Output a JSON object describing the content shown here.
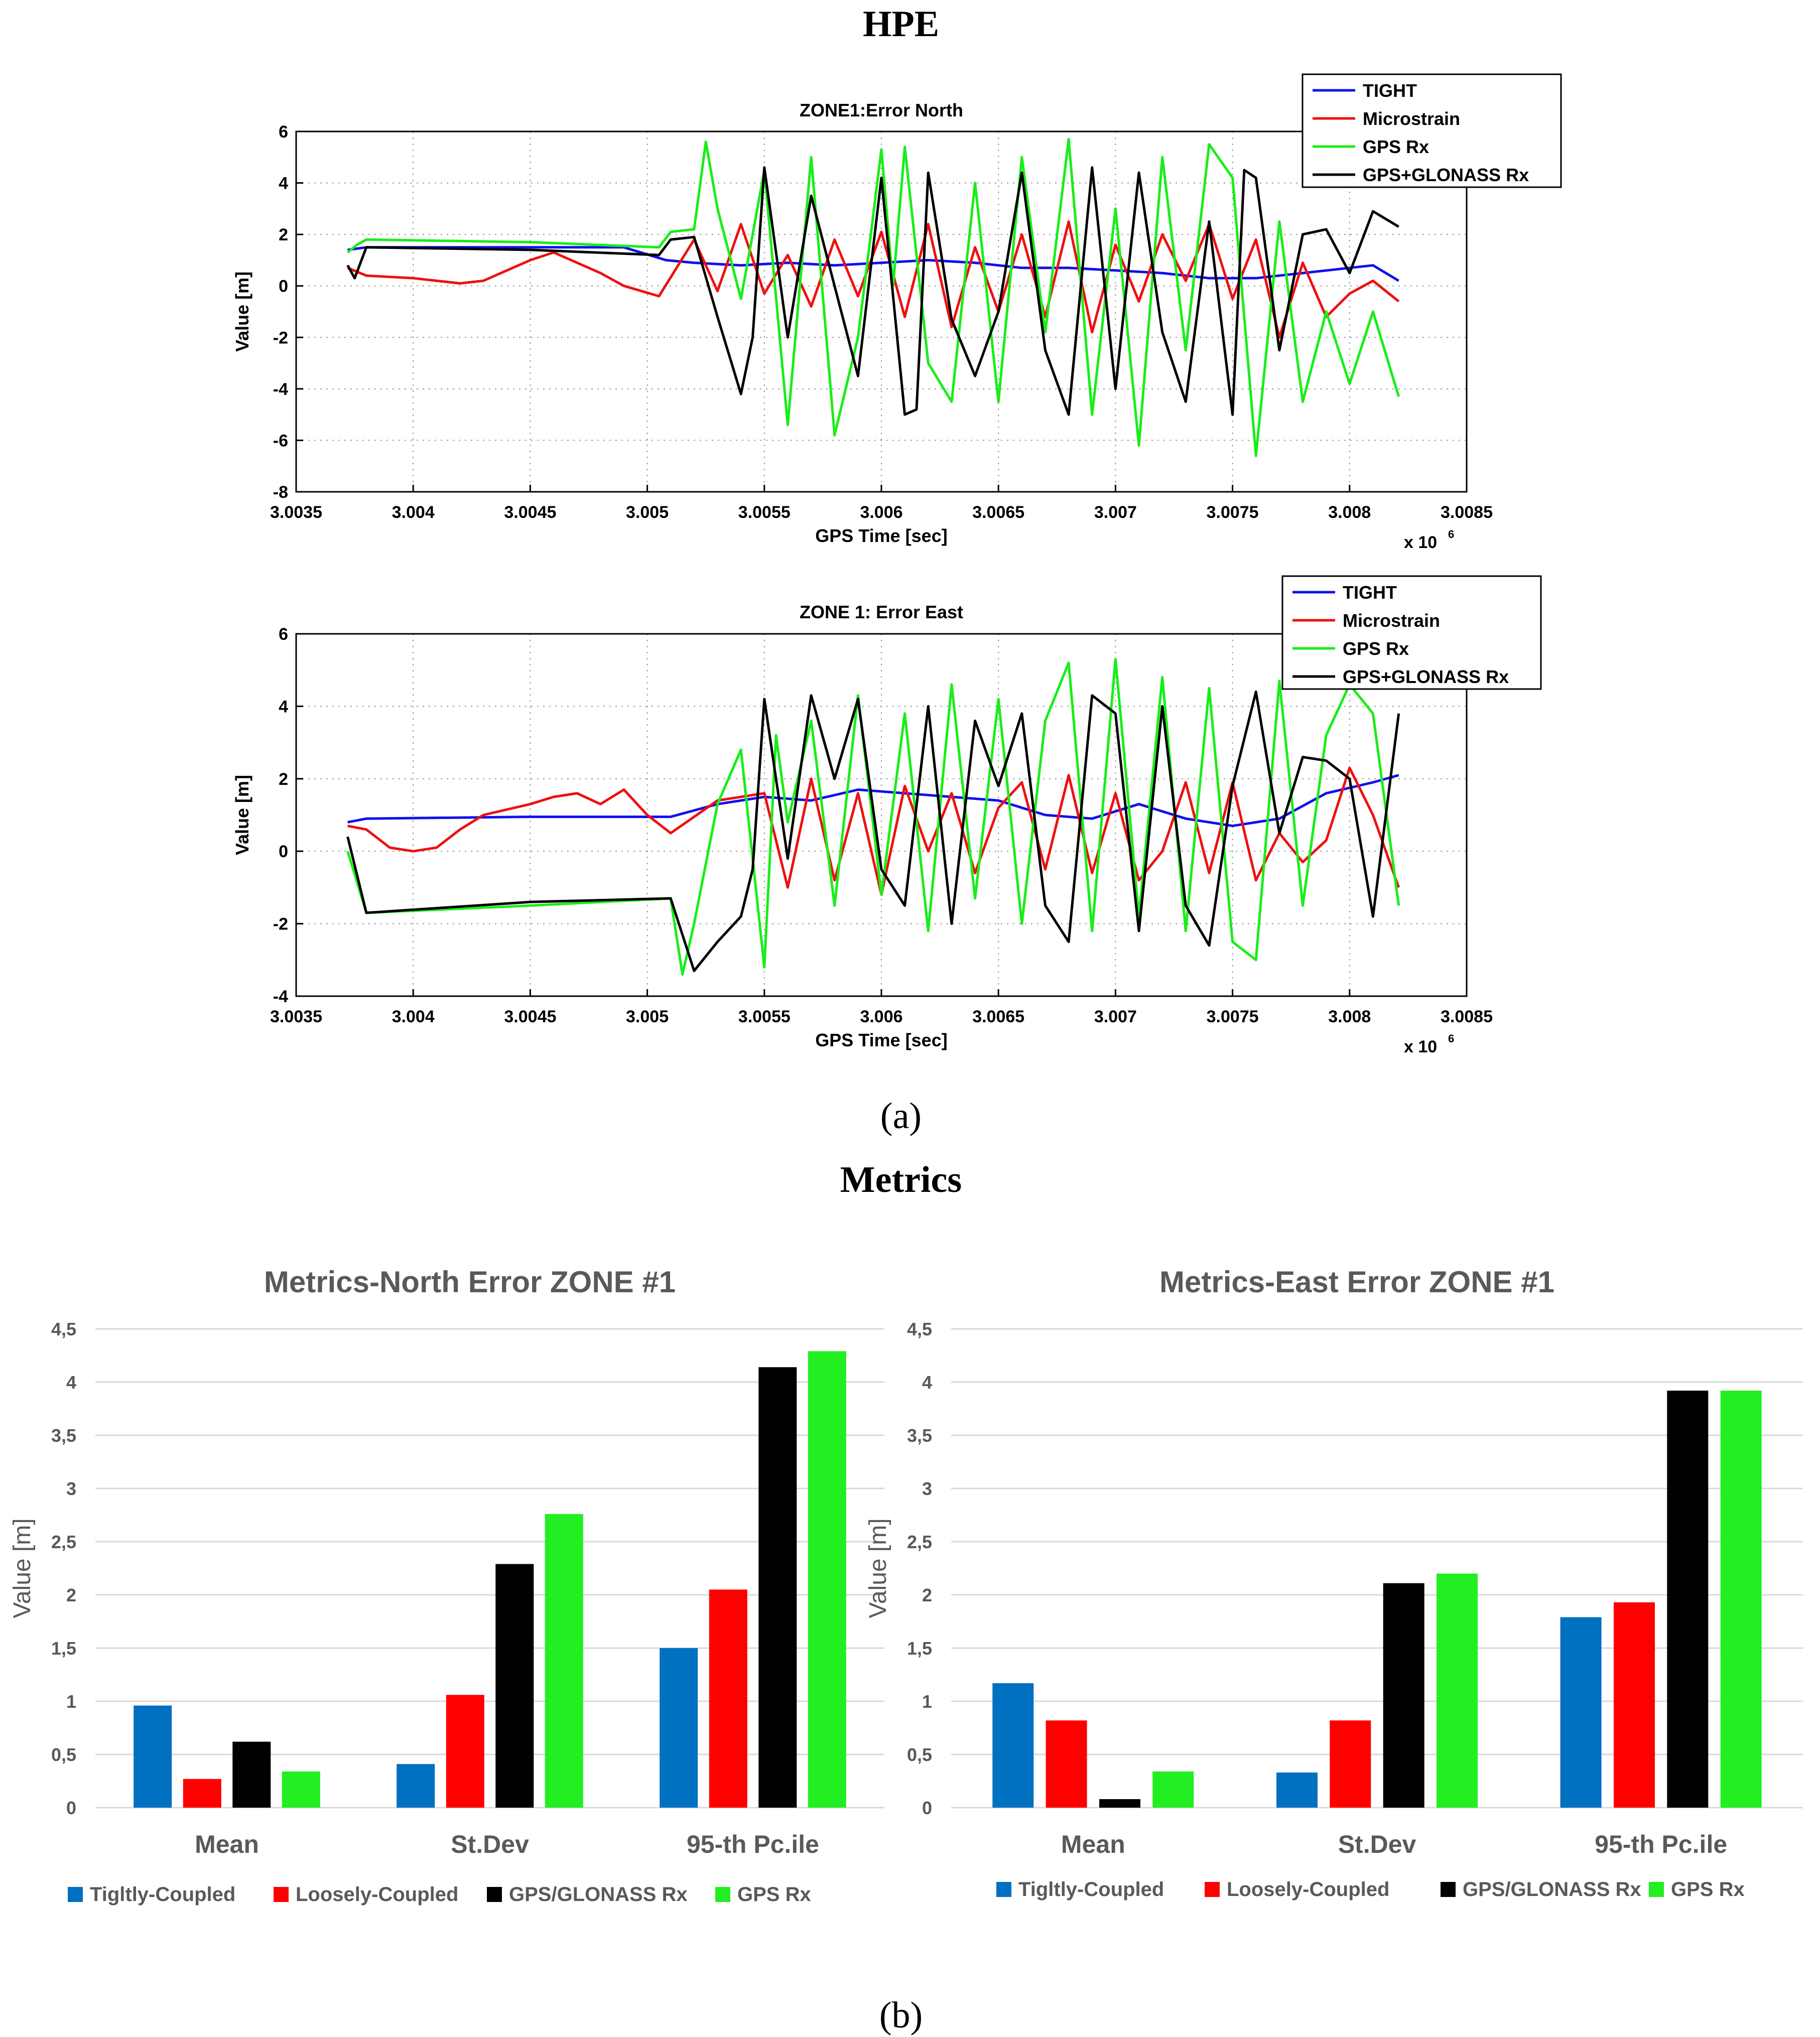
{
  "figure": {
    "section_a_title": "HPE",
    "section_a_caption": "(a)",
    "section_b_title": "Metrics",
    "section_b_caption": "(b)"
  },
  "colors": {
    "tight": "#1010ee",
    "microstrain": "#ee1010",
    "gps": "#18ee18",
    "gps_glonass": "#000000",
    "bar_tight": "#0070c0",
    "bar_loose": "#ff0000",
    "bar_glonass": "#000000",
    "bar_gps": "#22ee22",
    "bar_title": "#595959",
    "grid": "#d9d9d9"
  },
  "chart_data": [
    {
      "id": "north_line",
      "type": "line",
      "title": "ZONE1:Error North",
      "xlabel": "GPS Time [sec]",
      "ylabel": "Value [m]",
      "x_multiplier_label": "x 10",
      "x_multiplier_exp": "6",
      "xlim": [
        3.0035,
        3.0085
      ],
      "ylim": [
        -8,
        6
      ],
      "x_ticks": [
        3.0035,
        3.004,
        3.0045,
        3.005,
        3.0055,
        3.006,
        3.0065,
        3.007,
        3.0075,
        3.008,
        3.0085
      ],
      "x_tick_labels": [
        "3.0035",
        "3.004",
        "3.0045",
        "3.005",
        "3.0055",
        "3.006",
        "3.0065",
        "3.007",
        "3.0075",
        "3.008",
        "3.0085"
      ],
      "y_ticks": [
        6,
        4,
        2,
        0,
        -2,
        -4,
        -6,
        -8
      ],
      "y_tick_labels": [
        "6",
        "4",
        "2",
        "0",
        "-2",
        "-4",
        "-6",
        "-8"
      ],
      "grid": true,
      "legend_position": "top-right",
      "legend": [
        "TIGHT",
        "Microstrain",
        "GPS Rx",
        "GPS+GLONASS Rx"
      ],
      "series": [
        {
          "name": "TIGHT",
          "color_key": "tight",
          "x": [
            3.00372,
            3.0038,
            3.0041,
            3.0045,
            3.0049,
            3.00508,
            3.0052,
            3.0054,
            3.0056,
            3.0058,
            3.006,
            3.0062,
            3.0064,
            3.0066,
            3.0068,
            3.007,
            3.0072,
            3.0074,
            3.0076,
            3.0078,
            3.008,
            3.0081,
            3.00821
          ],
          "values": [
            1.4,
            1.5,
            1.5,
            1.5,
            1.5,
            1.0,
            0.9,
            0.8,
            0.9,
            0.8,
            0.9,
            1.0,
            0.9,
            0.7,
            0.7,
            0.6,
            0.5,
            0.3,
            0.3,
            0.5,
            0.7,
            0.8,
            0.2
          ]
        },
        {
          "name": "Microstrain",
          "color_key": "microstrain",
          "x": [
            3.00372,
            3.0038,
            3.004,
            3.0042,
            3.0043,
            3.0045,
            3.0046,
            3.0048,
            3.0049,
            3.00505,
            3.0052,
            3.0053,
            3.0054,
            3.0055,
            3.0056,
            3.0057,
            3.0058,
            3.0059,
            3.006,
            3.0061,
            3.0062,
            3.0063,
            3.0064,
            3.0065,
            3.0066,
            3.0067,
            3.0068,
            3.0069,
            3.007,
            3.0071,
            3.0072,
            3.0073,
            3.0074,
            3.0075,
            3.0076,
            3.0077,
            3.0078,
            3.0079,
            3.008,
            3.0081,
            3.00821
          ],
          "values": [
            0.7,
            0.4,
            0.3,
            0.1,
            0.2,
            1.0,
            1.3,
            0.5,
            0.0,
            -0.4,
            1.8,
            -0.2,
            2.4,
            -0.3,
            1.2,
            -0.8,
            1.8,
            -0.4,
            2.1,
            -1.2,
            2.4,
            -1.6,
            1.5,
            -1.0,
            2.0,
            -1.2,
            2.5,
            -1.8,
            1.6,
            -0.6,
            2.0,
            0.2,
            2.4,
            -0.5,
            1.8,
            -2.0,
            0.9,
            -1.2,
            -0.3,
            0.2,
            -0.6
          ]
        },
        {
          "name": "GPS Rx",
          "color_key": "gps",
          "x": [
            3.00372,
            3.00376,
            3.0038,
            3.0045,
            3.00505,
            3.0051,
            3.0052,
            3.00525,
            3.0053,
            3.0054,
            3.0055,
            3.0056,
            3.0057,
            3.0058,
            3.0059,
            3.006,
            3.00605,
            3.0061,
            3.0062,
            3.0063,
            3.0064,
            3.0065,
            3.0066,
            3.0067,
            3.0068,
            3.0069,
            3.007,
            3.0071,
            3.0072,
            3.0073,
            3.0074,
            3.0075,
            3.0076,
            3.0077,
            3.0078,
            3.0079,
            3.008,
            3.0081,
            3.00821
          ],
          "values": [
            1.3,
            1.6,
            1.8,
            1.7,
            1.5,
            2.1,
            2.2,
            5.6,
            3.0,
            -0.5,
            4.5,
            -5.4,
            5.0,
            -5.8,
            -2.0,
            5.3,
            0.0,
            5.4,
            -3.0,
            -4.5,
            4.0,
            -4.5,
            5.0,
            -1.8,
            5.7,
            -5.0,
            3.0,
            -6.2,
            5.0,
            -2.5,
            5.5,
            4.2,
            -6.6,
            2.5,
            -4.5,
            -1.0,
            -3.8,
            -1.0,
            -4.3
          ]
        },
        {
          "name": "GPS+GLONASS Rx",
          "color_key": "gps_glonass",
          "x": [
            3.00372,
            3.00375,
            3.0038,
            3.0045,
            3.00505,
            3.0051,
            3.0052,
            3.0053,
            3.0054,
            3.00545,
            3.0055,
            3.0056,
            3.0057,
            3.0058,
            3.0059,
            3.006,
            3.0061,
            3.00615,
            3.0062,
            3.0063,
            3.0064,
            3.0065,
            3.0066,
            3.0067,
            3.0068,
            3.0069,
            3.007,
            3.0071,
            3.0072,
            3.0073,
            3.0074,
            3.0075,
            3.00755,
            3.0076,
            3.0077,
            3.0078,
            3.0079,
            3.008,
            3.0081,
            3.00821
          ],
          "values": [
            0.8,
            0.3,
            1.5,
            1.4,
            1.2,
            1.8,
            1.9,
            -1.2,
            -4.2,
            -2.0,
            4.6,
            -2.0,
            3.5,
            0.0,
            -3.5,
            4.2,
            -5.0,
            -4.8,
            4.4,
            -1.3,
            -3.5,
            -1.0,
            4.4,
            -2.5,
            -5.0,
            4.6,
            -4.0,
            4.4,
            -1.8,
            -4.5,
            2.5,
            -5.0,
            4.5,
            4.2,
            -2.5,
            2.0,
            2.2,
            0.5,
            2.9,
            2.3
          ]
        }
      ]
    },
    {
      "id": "east_line",
      "type": "line",
      "title": "ZONE 1: Error East",
      "xlabel": "GPS Time [sec]",
      "ylabel": "Value [m]",
      "x_multiplier_label": "x 10",
      "x_multiplier_exp": "6",
      "xlim": [
        3.0035,
        3.0085
      ],
      "ylim": [
        -4,
        6
      ],
      "x_ticks": [
        3.0035,
        3.004,
        3.0045,
        3.005,
        3.0055,
        3.006,
        3.0065,
        3.007,
        3.0075,
        3.008,
        3.0085
      ],
      "x_tick_labels": [
        "3.0035",
        "3.004",
        "3.0045",
        "3.005",
        "3.0055",
        "3.006",
        "3.0065",
        "3.007",
        "3.0075",
        "3.008",
        "3.0085"
      ],
      "y_ticks": [
        6,
        4,
        2,
        0,
        -2,
        -4
      ],
      "y_tick_labels": [
        "6",
        "4",
        "2",
        "0",
        "-2",
        "-4"
      ],
      "grid": true,
      "legend_position": "top-right",
      "legend": [
        "TIGHT",
        "Microstrain",
        "GPS Rx",
        "GPS+GLONASS Rx"
      ],
      "series": [
        {
          "name": "TIGHT",
          "color_key": "tight",
          "x": [
            3.00372,
            3.0038,
            3.0045,
            3.0051,
            3.0053,
            3.0055,
            3.0057,
            3.0059,
            3.0061,
            3.0063,
            3.0065,
            3.0067,
            3.0069,
            3.0071,
            3.0073,
            3.0075,
            3.0077,
            3.0079,
            3.0081,
            3.00821
          ],
          "values": [
            0.8,
            0.9,
            0.95,
            0.95,
            1.3,
            1.5,
            1.4,
            1.7,
            1.6,
            1.5,
            1.4,
            1.0,
            0.9,
            1.3,
            0.9,
            0.7,
            0.9,
            1.6,
            1.9,
            2.1
          ]
        },
        {
          "name": "Microstrain",
          "color_key": "microstrain",
          "x": [
            3.00372,
            3.0038,
            3.0039,
            3.004,
            3.0041,
            3.0042,
            3.0043,
            3.0045,
            3.0046,
            3.0047,
            3.0048,
            3.0049,
            3.005,
            3.0051,
            3.0053,
            3.0055,
            3.0056,
            3.0057,
            3.0058,
            3.0059,
            3.006,
            3.0061,
            3.0062,
            3.0063,
            3.0064,
            3.0065,
            3.0066,
            3.0067,
            3.0068,
            3.0069,
            3.007,
            3.0071,
            3.0072,
            3.0073,
            3.0074,
            3.0075,
            3.0076,
            3.0077,
            3.0078,
            3.0079,
            3.008,
            3.0081,
            3.00821
          ],
          "values": [
            0.7,
            0.6,
            0.1,
            0.0,
            0.1,
            0.6,
            1.0,
            1.3,
            1.5,
            1.6,
            1.3,
            1.7,
            1.0,
            0.5,
            1.4,
            1.6,
            -1.0,
            2.0,
            -0.8,
            1.6,
            -1.2,
            1.8,
            0.0,
            1.6,
            -0.6,
            1.2,
            1.9,
            -0.5,
            2.1,
            -0.6,
            1.6,
            -0.8,
            0.0,
            1.9,
            -0.6,
            1.9,
            -0.8,
            0.5,
            -0.3,
            0.3,
            2.3,
            1.0,
            -1.0
          ]
        },
        {
          "name": "GPS Rx",
          "color_key": "gps",
          "x": [
            3.00372,
            3.0038,
            3.0045,
            3.0051,
            3.00515,
            3.0052,
            3.0053,
            3.0054,
            3.0055,
            3.00555,
            3.0056,
            3.0057,
            3.0058,
            3.0059,
            3.006,
            3.0061,
            3.0062,
            3.0063,
            3.0064,
            3.0065,
            3.0066,
            3.0067,
            3.0068,
            3.0069,
            3.007,
            3.0071,
            3.0072,
            3.0073,
            3.0074,
            3.0075,
            3.0076,
            3.0077,
            3.0078,
            3.0079,
            3.008,
            3.0081,
            3.00821
          ],
          "values": [
            0.0,
            -1.7,
            -1.5,
            -1.3,
            -3.4,
            -2.0,
            1.3,
            2.8,
            -3.2,
            3.2,
            0.8,
            3.6,
            -1.5,
            4.3,
            -1.2,
            3.8,
            -2.2,
            4.6,
            -1.3,
            4.2,
            -2.0,
            3.6,
            5.2,
            -2.2,
            5.3,
            -1.8,
            4.8,
            -2.2,
            4.5,
            -2.5,
            -3.0,
            4.7,
            -1.5,
            3.2,
            4.6,
            3.8,
            -1.5
          ]
        },
        {
          "name": "GPS+GLONASS Rx",
          "color_key": "gps_glonass",
          "x": [
            3.00372,
            3.0038,
            3.0045,
            3.0051,
            3.0052,
            3.0053,
            3.0054,
            3.00545,
            3.0055,
            3.0056,
            3.0057,
            3.0058,
            3.0059,
            3.006,
            3.0061,
            3.0062,
            3.0063,
            3.0064,
            3.0065,
            3.0066,
            3.0067,
            3.0068,
            3.0069,
            3.007,
            3.0071,
            3.0072,
            3.0073,
            3.0074,
            3.0075,
            3.0076,
            3.0077,
            3.0078,
            3.0079,
            3.008,
            3.0081,
            3.00821
          ],
          "values": [
            0.4,
            -1.7,
            -1.4,
            -1.3,
            -3.3,
            -2.5,
            -1.8,
            -0.5,
            4.2,
            -0.2,
            4.3,
            2.0,
            4.2,
            -0.5,
            -1.5,
            4.0,
            -2.0,
            3.6,
            1.8,
            3.8,
            -1.5,
            -2.5,
            4.3,
            3.8,
            -2.2,
            4.0,
            -1.5,
            -2.6,
            1.8,
            4.4,
            0.5,
            2.6,
            2.5,
            2.0,
            -1.8,
            3.8
          ]
        }
      ]
    },
    {
      "id": "north_bar",
      "type": "bar",
      "title": "Metrics-North Error ZONE #1",
      "xlabel": "",
      "ylabel": "Value [m]",
      "ylim": [
        0,
        4.5
      ],
      "y_tick_labels": [
        "0",
        "0,5",
        "1",
        "1,5",
        "2",
        "2,5",
        "3",
        "3,5",
        "4",
        "4,5"
      ],
      "grid": true,
      "legend_position": "bottom",
      "categories": [
        "Mean",
        "St.Dev",
        "95-th Pc.ile"
      ],
      "series": [
        {
          "name": "Tigltly-Coupled",
          "color_key": "bar_tight",
          "values": [
            0.96,
            0.41,
            1.5
          ]
        },
        {
          "name": "Loosely-Coupled",
          "color_key": "bar_loose",
          "values": [
            0.27,
            1.06,
            2.05
          ]
        },
        {
          "name": "GPS/GLONASS Rx",
          "color_key": "bar_glonass",
          "values": [
            0.62,
            2.29,
            4.14
          ]
        },
        {
          "name": "GPS Rx",
          "color_key": "bar_gps",
          "values": [
            0.34,
            2.76,
            4.29
          ]
        }
      ]
    },
    {
      "id": "east_bar",
      "type": "bar",
      "title": "Metrics-East Error ZONE #1",
      "xlabel": "",
      "ylabel": "Value [m]",
      "ylim": [
        0,
        4.5
      ],
      "y_tick_labels": [
        "0",
        "0,5",
        "1",
        "1,5",
        "2",
        "2,5",
        "3",
        "3,5",
        "4",
        "4,5"
      ],
      "grid": true,
      "legend_position": "bottom",
      "categories": [
        "Mean",
        "St.Dev",
        "95-th Pc.ile"
      ],
      "series": [
        {
          "name": "Tigltly-Coupled",
          "color_key": "bar_tight",
          "values": [
            1.17,
            0.33,
            1.79
          ]
        },
        {
          "name": "Loosely-Coupled",
          "color_key": "bar_loose",
          "values": [
            0.82,
            0.82,
            1.93
          ]
        },
        {
          "name": "GPS/GLONASS Rx",
          "color_key": "bar_glonass",
          "values": [
            0.08,
            2.11,
            3.92
          ]
        },
        {
          "name": "GPS Rx",
          "color_key": "bar_gps",
          "values": [
            0.34,
            2.2,
            3.92
          ]
        }
      ]
    }
  ]
}
